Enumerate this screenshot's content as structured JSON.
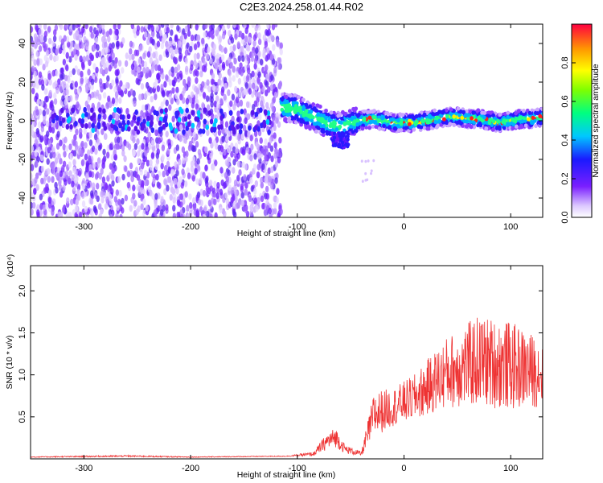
{
  "title": "C2E3.2024.258.01.44.R02",
  "chart_data": [
    {
      "type": "heatmap",
      "xlabel": "Height of straight line (km)",
      "ylabel": "Frequency (Hz)",
      "xlim": [
        -350,
        130
      ],
      "ylim": [
        -50,
        50
      ],
      "xticks": [
        -300,
        -200,
        -100,
        0,
        100
      ],
      "yticks": [
        -40,
        -20,
        0,
        20,
        40
      ],
      "xtick_labels": [
        "-300",
        "-200",
        "-100",
        "0",
        "100"
      ],
      "ytick_labels": [
        "-40",
        "-20",
        "0",
        "20",
        "40"
      ],
      "colorbar": {
        "label": "Normalized spectral amplitude",
        "range": [
          0,
          1
        ],
        "ticks": [
          0.0,
          0.2,
          0.4,
          0.6,
          0.8
        ],
        "tick_labels": [
          "0.0",
          "0.2",
          "0.4",
          "0.6",
          "0.8"
        ]
      },
      "noise_region_x": [
        -350,
        -115
      ],
      "signal_track": [
        {
          "x": -115,
          "y": 7
        },
        {
          "x": -100,
          "y": 6
        },
        {
          "x": -90,
          "y": 3
        },
        {
          "x": -80,
          "y": 1
        },
        {
          "x": -70,
          "y": -2
        },
        {
          "x": -60,
          "y": -3
        },
        {
          "x": -50,
          "y": -1
        },
        {
          "x": -40,
          "y": 0
        },
        {
          "x": -30,
          "y": 1
        },
        {
          "x": -20,
          "y": 0
        },
        {
          "x": -10,
          "y": -1
        },
        {
          "x": 0,
          "y": -1
        },
        {
          "x": 10,
          "y": -1
        },
        {
          "x": 20,
          "y": 0
        },
        {
          "x": 30,
          "y": 1
        },
        {
          "x": 40,
          "y": 2
        },
        {
          "x": 50,
          "y": 2
        },
        {
          "x": 60,
          "y": 1
        },
        {
          "x": 70,
          "y": 1
        },
        {
          "x": 80,
          "y": 0
        },
        {
          "x": 90,
          "y": -1
        },
        {
          "x": 100,
          "y": 0
        },
        {
          "x": 110,
          "y": 1
        },
        {
          "x": 120,
          "y": 1
        },
        {
          "x": 130,
          "y": 2
        }
      ]
    },
    {
      "type": "line",
      "xlabel": "Height of straight line (km)",
      "ylabel": "SNR (10 * v/v)",
      "y_multiplier": "(x10⁴)",
      "xlim": [
        -350,
        130
      ],
      "ylim": [
        0,
        2.3
      ],
      "xticks": [
        -300,
        -200,
        -100,
        0,
        100
      ],
      "yticks": [
        0.5,
        1.0,
        1.5,
        2.0
      ],
      "xtick_labels": [
        "-300",
        "-200",
        "-100",
        "0",
        "100"
      ],
      "ytick_labels": [
        "0.5",
        "1.0",
        "1.5",
        "2.0"
      ],
      "color": "#ee3333",
      "envelope": [
        {
          "x": -350,
          "base": 0.02,
          "amp": 0.01
        },
        {
          "x": -260,
          "base": 0.03,
          "amp": 0.02
        },
        {
          "x": -200,
          "base": 0.02,
          "amp": 0.01
        },
        {
          "x": -110,
          "base": 0.03,
          "amp": 0.01
        },
        {
          "x": -85,
          "base": 0.05,
          "amp": 0.05
        },
        {
          "x": -72,
          "base": 0.18,
          "amp": 0.2
        },
        {
          "x": -64,
          "base": 0.22,
          "amp": 0.24
        },
        {
          "x": -55,
          "base": 0.1,
          "amp": 0.1
        },
        {
          "x": -40,
          "base": 0.05,
          "amp": 0.06
        },
        {
          "x": -28,
          "base": 0.45,
          "amp": 0.55
        },
        {
          "x": -10,
          "base": 0.55,
          "amp": 0.45
        },
        {
          "x": 10,
          "base": 0.65,
          "amp": 0.55
        },
        {
          "x": 40,
          "base": 0.9,
          "amp": 0.85
        },
        {
          "x": 70,
          "base": 1.0,
          "amp": 1.1
        },
        {
          "x": 100,
          "base": 0.95,
          "amp": 1.05
        },
        {
          "x": 130,
          "base": 0.9,
          "amp": 0.8
        }
      ]
    }
  ]
}
